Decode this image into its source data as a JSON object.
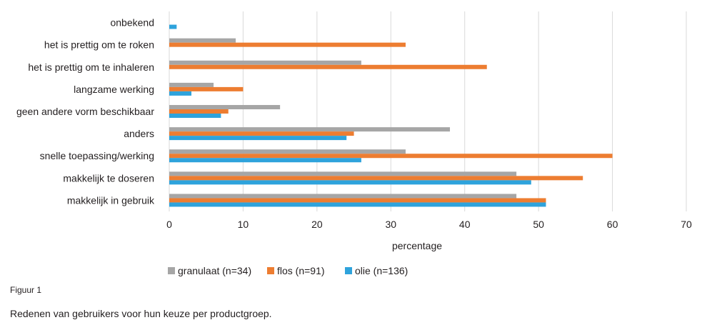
{
  "chart_data": {
    "type": "bar",
    "orientation": "horizontal",
    "categories": [
      "onbekend",
      "het is prettig om te roken",
      "het is prettig om te inhaleren",
      "langzame werking",
      "geen andere vorm beschikbaar",
      "anders",
      "snelle toepassing/werking",
      "makkelijk te doseren",
      "makkelijk in gebruik"
    ],
    "series": [
      {
        "name": "granulaat (n=34)",
        "color": "#a6a6a6",
        "values": [
          0,
          9,
          26,
          6,
          15,
          38,
          32,
          47,
          47
        ]
      },
      {
        "name": "flos (n=91)",
        "color": "#ed7d31",
        "values": [
          0,
          32,
          43,
          10,
          8,
          25,
          60,
          56,
          51
        ]
      },
      {
        "name": "olie (n=136)",
        "color": "#2ea3dc",
        "values": [
          1,
          0,
          0,
          3,
          7,
          24,
          26,
          49,
          51
        ]
      }
    ],
    "xlabel": "percentage",
    "xlim": [
      0,
      70
    ],
    "xticks": [
      "0",
      "10",
      "20",
      "30",
      "40",
      "50",
      "60",
      "70"
    ],
    "grid": true,
    "legend_position": "bottom-left"
  },
  "figure": {
    "label": "Figuur 1",
    "caption": "Redenen van gebruikers voor hun keuze per productgroep."
  }
}
